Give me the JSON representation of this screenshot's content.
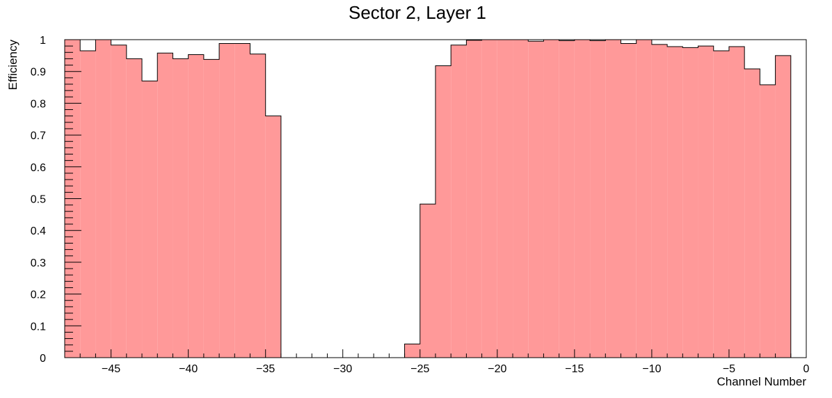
{
  "chart_data": {
    "type": "bar",
    "title": "Sector 2, Layer 1",
    "xlabel": "Channel Number",
    "ylabel": "Efficiency",
    "xlim": [
      -48,
      0
    ],
    "ylim": [
      0,
      1
    ],
    "grid": false,
    "legend": "none",
    "bin_width": 1,
    "bin_start": -48,
    "values": [
      1.0,
      0.965,
      1.0,
      0.983,
      0.94,
      0.87,
      0.958,
      0.94,
      0.953,
      0.938,
      0.988,
      0.988,
      0.955,
      0.76,
      0,
      0,
      0,
      0,
      0,
      0,
      0,
      0,
      0.043,
      0.483,
      0.918,
      0.983,
      0.998,
      1.0,
      1.0,
      1.0,
      0.995,
      1.0,
      0.997,
      1.0,
      0.997,
      1.0,
      0.988,
      1.0,
      0.985,
      0.978,
      0.975,
      0.98,
      0.965,
      0.978,
      0.908,
      0.858,
      0.95
    ],
    "x_ticks": [
      -45,
      -40,
      -35,
      -30,
      -25,
      -20,
      -15,
      -10,
      -5,
      0
    ],
    "x_tick_labels": [
      "−45",
      "−40",
      "−35",
      "−30",
      "−25",
      "−20",
      "−15",
      "−10",
      "−5",
      "0"
    ],
    "y_ticks": [
      0,
      0.1,
      0.2,
      0.3,
      0.4,
      0.5,
      0.6,
      0.7,
      0.8,
      0.9,
      1
    ],
    "y_tick_labels": [
      "0",
      "0.1",
      "0.2",
      "0.3",
      "0.4",
      "0.5",
      "0.6",
      "0.7",
      "0.8",
      "0.9",
      "1"
    ],
    "colors": {
      "fill": "#ff9999",
      "line": "#000000"
    }
  }
}
